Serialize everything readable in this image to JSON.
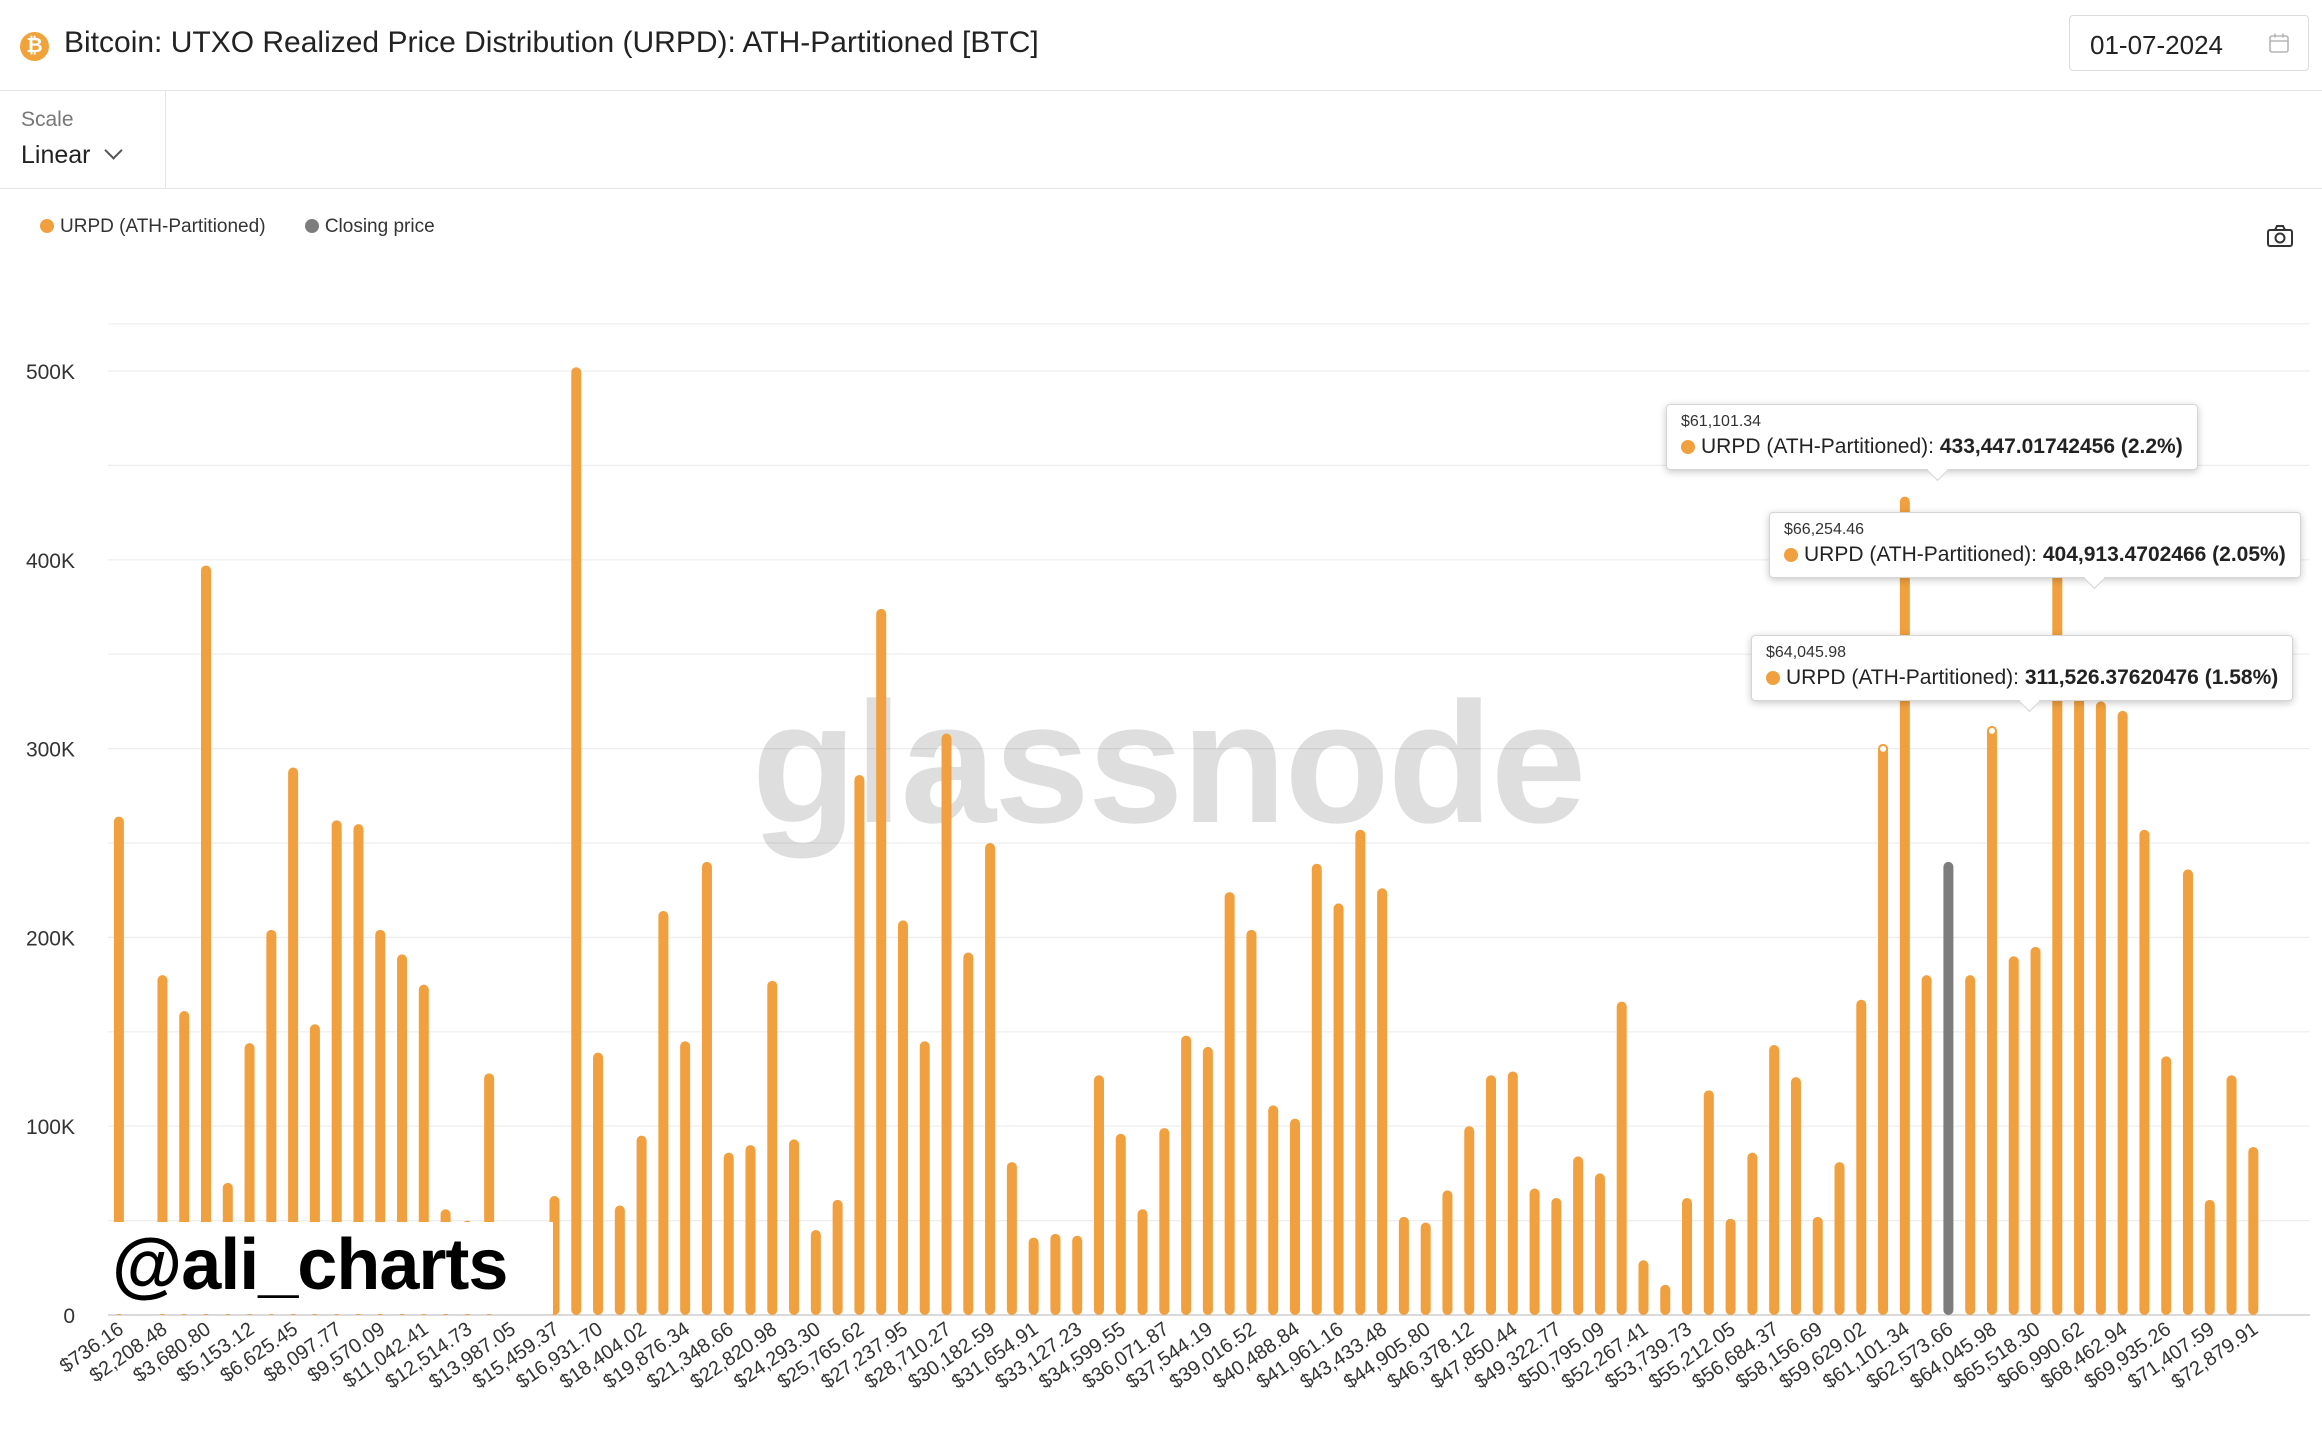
{
  "header": {
    "icon_glyph": "₿",
    "title": "Bitcoin: UTXO Realized Price Distribution (URPD): ATH-Partitioned [BTC]",
    "date_value": "01-07-2024"
  },
  "controls": {
    "scale_label": "Scale",
    "scale_value": "Linear"
  },
  "legend": [
    {
      "label": "URPD (ATH-Partitioned)",
      "color": "#f0a03e"
    },
    {
      "label": "Closing price",
      "color": "#7d7d7d"
    }
  ],
  "watermarks": {
    "brand": "glassnode",
    "handle": "@ali_charts"
  },
  "tooltips": [
    {
      "price": "$61,101.34",
      "series": "URPD (ATH-Partitioned):",
      "value": "433,447.01742456 (2.2%)"
    },
    {
      "price": "$66,254.46",
      "series": "URPD (ATH-Partitioned):",
      "value": "404,913.4702466 (2.05%)"
    },
    {
      "price": "$64,045.98",
      "series": "URPD (ATH-Partitioned):",
      "value": "311,526.37620476 (1.58%)"
    }
  ],
  "chart_data": {
    "type": "bar",
    "title": "Bitcoin: UTXO Realized Price Distribution (URPD): ATH-Partitioned [BTC]",
    "xlabel": "",
    "ylabel": "",
    "ylim": [
      0,
      500000
    ],
    "yticks": [
      0,
      100000,
      200000,
      300000,
      400000,
      500000
    ],
    "ytick_labels": [
      "0",
      "100K",
      "200K",
      "300K",
      "400K",
      "500K"
    ],
    "grid": true,
    "series": [
      {
        "name": "URPD (ATH-Partitioned)",
        "color": "#f0a03e",
        "values": [
          264000,
          0,
          180000,
          161000,
          397000,
          70000,
          144000,
          204000,
          290000,
          154000,
          262000,
          260000,
          204000,
          191000,
          175000,
          56000,
          50000,
          128000,
          0,
          0,
          63000,
          502000,
          139000,
          58000,
          95000,
          214000,
          145000,
          240000,
          86000,
          90000,
          177000,
          93000,
          45000,
          61000,
          286000,
          374000,
          209000,
          145000,
          308000,
          192000,
          250000,
          81000,
          41000,
          43000,
          42000,
          127000,
          96000,
          56000,
          99000,
          148000,
          142000,
          224000,
          204000,
          111000,
          104000,
          239000,
          218000,
          257000,
          226000,
          52000,
          49000,
          66000,
          100000,
          127000,
          129000,
          67000,
          62000,
          84000,
          75000,
          166000,
          29000,
          16000,
          62000,
          119000,
          51000,
          86000,
          143000,
          126000,
          52000,
          81000,
          167000,
          302000,
          433447,
          180000,
          0,
          180000,
          311526,
          190000,
          195000,
          404913,
          335000,
          325000,
          320000,
          257000,
          137000,
          236000,
          61000,
          127000,
          89000
        ]
      },
      {
        "name": "Closing price",
        "color": "#7d7d7d",
        "index": 84,
        "value": 240000
      }
    ],
    "x_tick_labels": [
      "$736.16",
      "$2,208.48",
      "$3,680.80",
      "$5,153.12",
      "$6,625.45",
      "$8,097.77",
      "$9,570.09",
      "$11,042.41",
      "$12,514.73",
      "$13,987.05",
      "$15,459.37",
      "$16,931.70",
      "$18,404.02",
      "$19,876.34",
      "$21,348.66",
      "$22,820.98",
      "$24,293.30",
      "$25,765.62",
      "$27,237.95",
      "$28,710.27",
      "$30,182.59",
      "$31,654.91",
      "$33,127.23",
      "$34,599.55",
      "$36,071.87",
      "$37,544.19",
      "$39,016.52",
      "$40,488.84",
      "$41,961.16",
      "$43,433.48",
      "$44,905.80",
      "$46,378.12",
      "$47,850.44",
      "$49,322.77",
      "$50,795.09",
      "$52,267.41",
      "$53,739.73",
      "$55,212.05",
      "$56,684.37",
      "$58,156.69",
      "$59,629.02",
      "$61,101.34",
      "$62,573.66",
      "$64,045.98",
      "$65,518.30",
      "$66,990.62",
      "$68,462.94",
      "$69,935.26",
      "$71,407.59",
      "$72,879.91"
    ]
  }
}
